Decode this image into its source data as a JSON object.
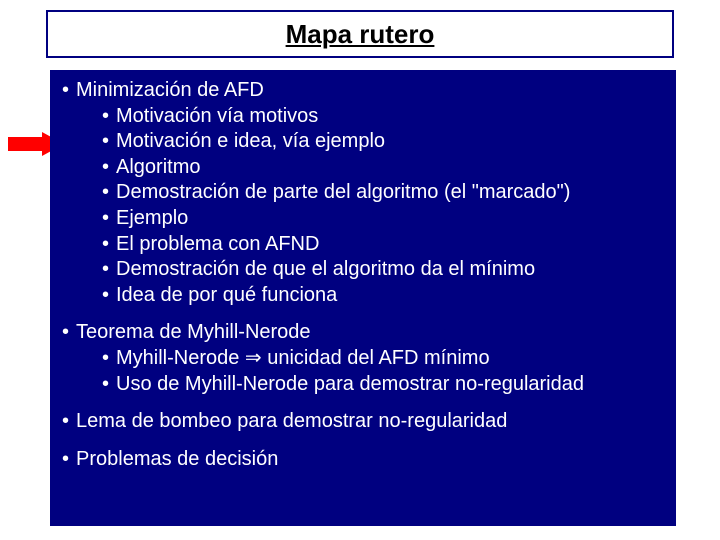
{
  "title": "Mapa rutero",
  "colors": {
    "content_bg": "#000080",
    "content_text": "#ffffff",
    "title_border": "#000080",
    "arrow": "#ff0000"
  },
  "sections": [
    {
      "heading": "Minimización de AFD",
      "items": [
        "Motivación vía motivos",
        "Motivación e idea, vía ejemplo",
        "Algoritmo",
        "Demostración de parte del algoritmo (el \"marcado\")",
        "Ejemplo",
        "El problema con AFND",
        "Demostración de que el algoritmo da el mínimo",
        "Idea de por qué funciona"
      ]
    },
    {
      "heading": "Teorema de Myhill-Nerode",
      "items": [
        "Myhill-Nerode ⇒ unicidad del AFD mínimo",
        "Uso de Myhill-Nerode para demostrar no-regularidad"
      ]
    },
    {
      "heading": "Lema de bombeo para demostrar no-regularidad",
      "items": []
    },
    {
      "heading": "Problemas de decisión",
      "items": []
    }
  ]
}
